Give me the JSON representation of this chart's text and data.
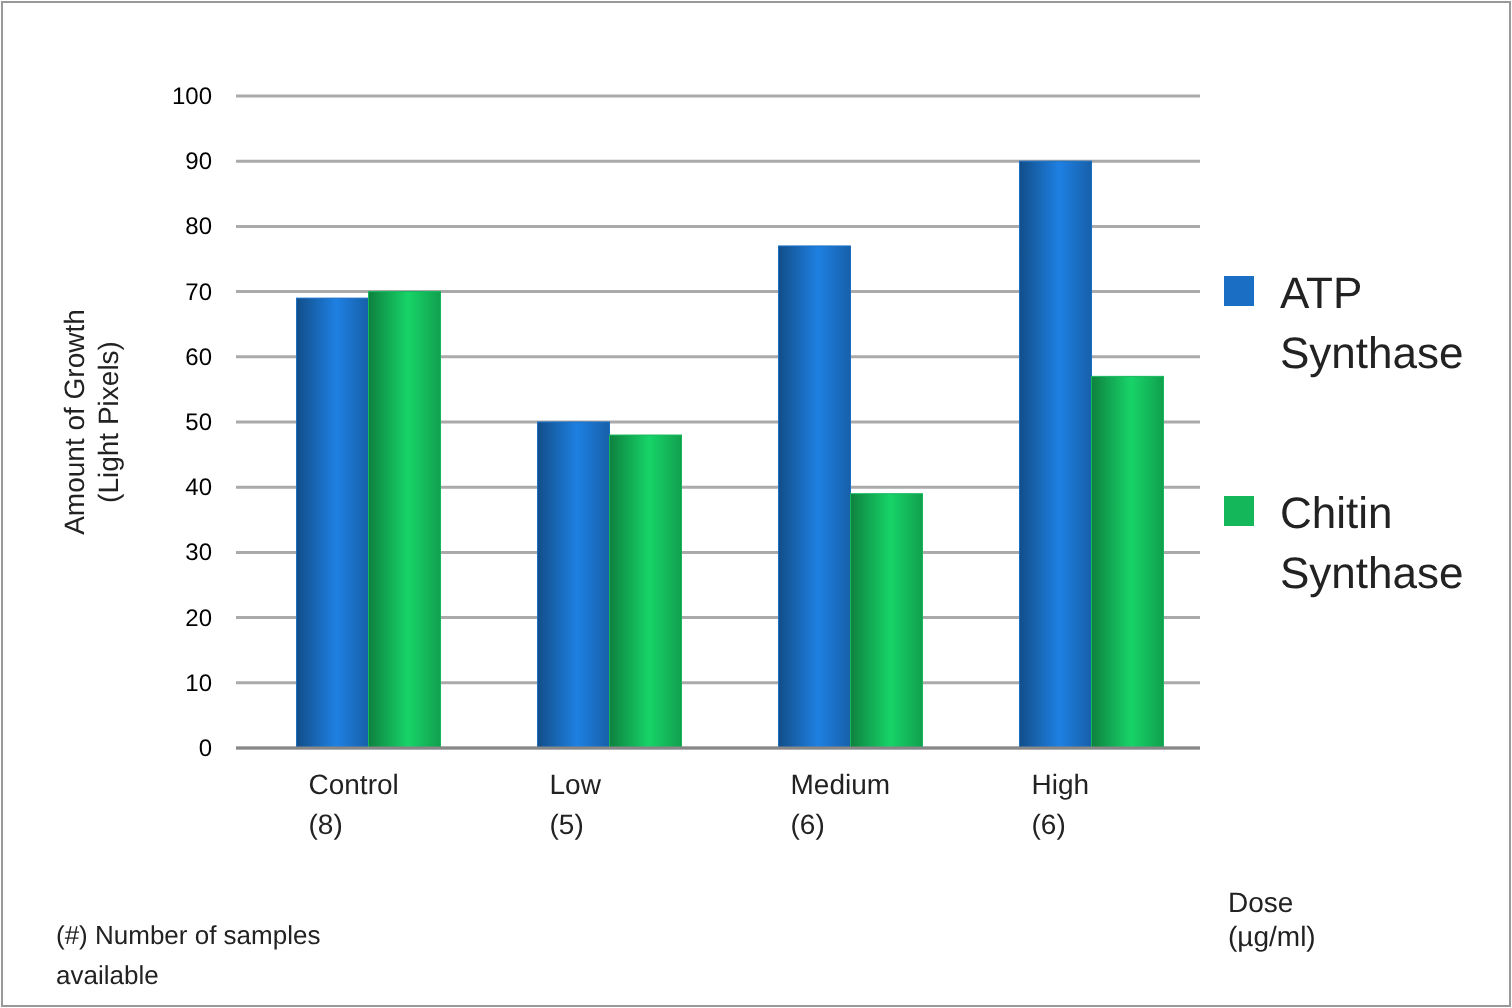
{
  "chart_data": {
    "type": "bar",
    "ylabel": "Amount of Growth\n(Light Pixels)",
    "xlabel": "Dose\n(µg/ml)",
    "categories": [
      "Control\n(8)",
      "Low\n(5)",
      "Medium\n(6)",
      "High\n(6)"
    ],
    "series": [
      {
        "name": "ATP\nSynthase",
        "color": "#1a6fc4",
        "values": [
          69,
          50,
          77,
          90
        ]
      },
      {
        "name": "Chitin\nSynthase",
        "color": "#14b85a",
        "values": [
          70,
          48,
          39,
          57
        ]
      }
    ],
    "ylim": [
      0,
      100
    ],
    "yticks": [
      0,
      10,
      20,
      30,
      40,
      50,
      60,
      70,
      80,
      90,
      100
    ],
    "grid": "y",
    "legend": "right",
    "annotations": [
      "(#) Number of  samples\navailable"
    ]
  }
}
